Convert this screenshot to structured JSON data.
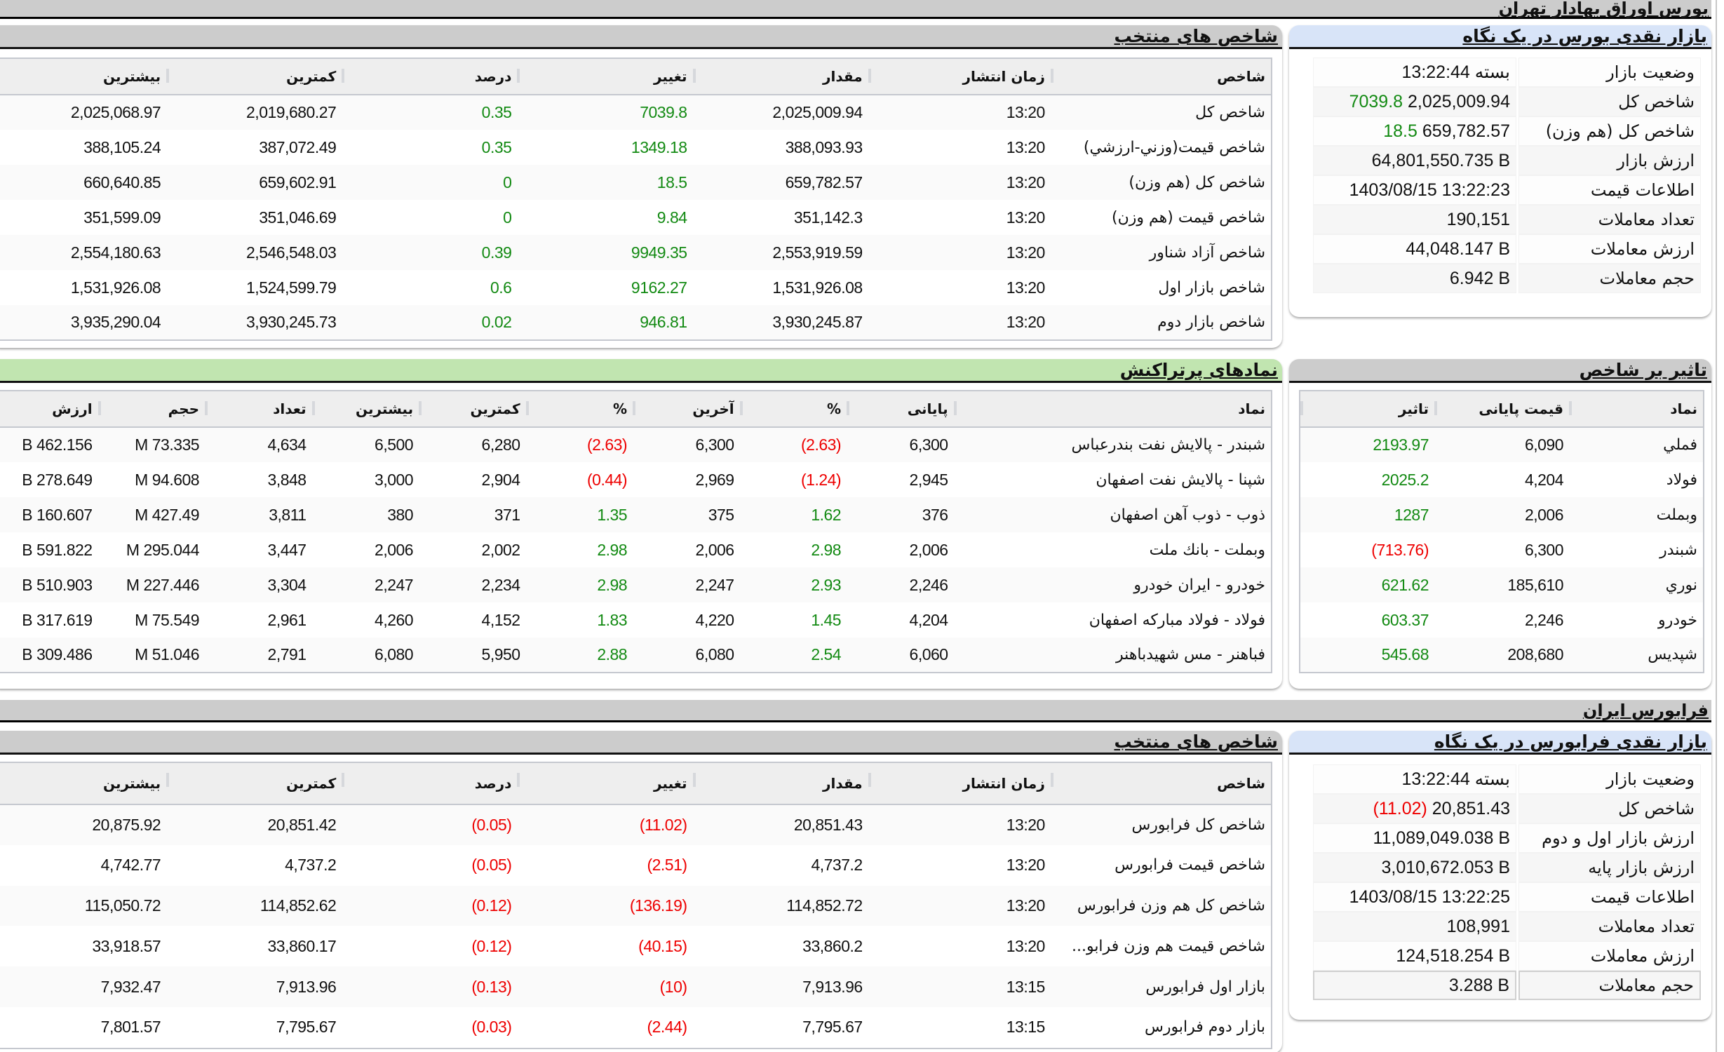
{
  "tse": {
    "title": "بورس اوراق بهادار تهران",
    "glance": {
      "title": "بازار نقدی بورس در یک نگاه",
      "rows": [
        {
          "label": "وضعیت بازار",
          "value": "بسته 13:22:44",
          "change": "",
          "change_color": ""
        },
        {
          "label": "شاخص کل",
          "value": "2,025,009.94",
          "change": "7039.8",
          "change_color": "pos"
        },
        {
          "label": "شاخص کل (هم وزن)",
          "value": "659,782.57",
          "change": "18.5",
          "change_color": "pos"
        },
        {
          "label": "ارزش بازار",
          "value": "64,801,550.735 B",
          "change": "",
          "change_color": ""
        },
        {
          "label": "اطلاعات قیمت",
          "value": "1403/08/15 13:22:23",
          "change": "",
          "change_color": ""
        },
        {
          "label": "تعداد معاملات",
          "value": "190,151",
          "change": "",
          "change_color": ""
        },
        {
          "label": "ارزش معاملات",
          "value": "44,048.147 B",
          "change": "",
          "change_color": ""
        },
        {
          "label": "حجم معاملات",
          "value": "6.942 B",
          "change": "",
          "change_color": ""
        }
      ]
    },
    "selected_indices": {
      "title": "شاخص های منتخب",
      "columns": [
        "شاخص",
        "زمان انتشار",
        "مقدار",
        "تغییر",
        "درصد",
        "کمترین",
        "بیشترین"
      ],
      "rows": [
        {
          "name": "شاخص کل",
          "time": "13:20",
          "value": "2,025,009.94",
          "change": "7039.8",
          "percent": "0.35",
          "min": "2,019,680.27",
          "max": "2,025,068.97",
          "dir": "pos"
        },
        {
          "name": "شاخص قیمت(وزني-ارزشي)",
          "time": "13:20",
          "value": "388,093.93",
          "change": "1349.18",
          "percent": "0.35",
          "min": "387,072.49",
          "max": "388,105.24",
          "dir": "pos"
        },
        {
          "name": "شاخص کل (هم وزن)",
          "time": "13:20",
          "value": "659,782.57",
          "change": "18.5",
          "percent": "0",
          "min": "659,602.91",
          "max": "660,640.85",
          "dir": "pos"
        },
        {
          "name": "شاخص قیمت (هم وزن)",
          "time": "13:20",
          "value": "351,142.3",
          "change": "9.84",
          "percent": "0",
          "min": "351,046.69",
          "max": "351,599.09",
          "dir": "pos"
        },
        {
          "name": "شاخص آزاد شناور",
          "time": "13:20",
          "value": "2,553,919.59",
          "change": "9949.35",
          "percent": "0.39",
          "min": "2,546,548.03",
          "max": "2,554,180.63",
          "dir": "pos"
        },
        {
          "name": "شاخص بازار اول",
          "time": "13:20",
          "value": "1,531,926.08",
          "change": "9162.27",
          "percent": "0.6",
          "min": "1,524,599.79",
          "max": "1,531,926.08",
          "dir": "pos"
        },
        {
          "name": "شاخص بازار دوم",
          "time": "13:20",
          "value": "3,930,245.87",
          "change": "946.81",
          "percent": "0.02",
          "min": "3,930,245.73",
          "max": "3,935,290.04",
          "dir": "pos"
        }
      ]
    },
    "impact": {
      "title": "تاثیر بر شاخص",
      "columns": [
        "نماد",
        "قیمت پایانی",
        "تاثیر"
      ],
      "rows": [
        {
          "symbol": "فملي",
          "close": "6,090",
          "impact": "2193.97",
          "dir": "pos"
        },
        {
          "symbol": "فولاد",
          "close": "4,204",
          "impact": "2025.2",
          "dir": "pos"
        },
        {
          "symbol": "وبملت",
          "close": "2,006",
          "impact": "1287",
          "dir": "pos"
        },
        {
          "symbol": "شبندر",
          "close": "6,300",
          "impact": "(713.76)",
          "dir": "neg"
        },
        {
          "symbol": "نوري",
          "close": "185,610",
          "impact": "621.62",
          "dir": "pos"
        },
        {
          "symbol": "خودرو",
          "close": "2,246",
          "impact": "603.37",
          "dir": "pos"
        },
        {
          "symbol": "شپديس",
          "close": "208,680",
          "impact": "545.68",
          "dir": "pos"
        }
      ]
    },
    "most_traded": {
      "title": "نمادهای پرتراکنش",
      "columns": [
        "نماد",
        "پایانی",
        "%",
        "آخرین",
        "%",
        "کمترین",
        "بیشترین",
        "تعداد",
        "حجم",
        "ارزش"
      ],
      "rows": [
        {
          "symbol": "شبندر - پالايش نفت بندرعباس",
          "close": "6,300",
          "close_pct": "(2.63)",
          "close_dir": "neg",
          "last": "6,300",
          "last_pct": "(2.63)",
          "last_dir": "neg",
          "min": "6,280",
          "max": "6,500",
          "count": "4,634",
          "volume": "73.335 M",
          "value": "462.156 B"
        },
        {
          "symbol": "شپنا - پالايش نفت اصفهان",
          "close": "2,945",
          "close_pct": "(1.24)",
          "close_dir": "neg",
          "last": "2,969",
          "last_pct": "(0.44)",
          "last_dir": "neg",
          "min": "2,904",
          "max": "3,000",
          "count": "3,848",
          "volume": "94.608 M",
          "value": "278.649 B"
        },
        {
          "symbol": "ذوب - ذوب آهن اصفهان",
          "close": "376",
          "close_pct": "1.62",
          "close_dir": "pos",
          "last": "375",
          "last_pct": "1.35",
          "last_dir": "pos",
          "min": "371",
          "max": "380",
          "count": "3,811",
          "volume": "427.49 M",
          "value": "160.607 B"
        },
        {
          "symbol": "وبملت - بانك ملت",
          "close": "2,006",
          "close_pct": "2.98",
          "close_dir": "pos",
          "last": "2,006",
          "last_pct": "2.98",
          "last_dir": "pos",
          "min": "2,002",
          "max": "2,006",
          "count": "3,447",
          "volume": "295.044 M",
          "value": "591.822 B"
        },
        {
          "symbol": "خودرو - ايران خودرو",
          "close": "2,246",
          "close_pct": "2.93",
          "close_dir": "pos",
          "last": "2,247",
          "last_pct": "2.98",
          "last_dir": "pos",
          "min": "2,234",
          "max": "2,247",
          "count": "3,304",
          "volume": "227.446 M",
          "value": "510.903 B"
        },
        {
          "symbol": "فولاد - فولاد مباركه اصفهان",
          "close": "4,204",
          "close_pct": "1.45",
          "close_dir": "pos",
          "last": "4,220",
          "last_pct": "1.83",
          "last_dir": "pos",
          "min": "4,152",
          "max": "4,260",
          "count": "2,961",
          "volume": "75.549 M",
          "value": "317.619 B"
        },
        {
          "symbol": "فباهنر - مس شهيدباهنر",
          "close": "6,060",
          "close_pct": "2.54",
          "close_dir": "pos",
          "last": "6,080",
          "last_pct": "2.88",
          "last_dir": "pos",
          "min": "5,950",
          "max": "6,080",
          "count": "2,791",
          "volume": "51.046 M",
          "value": "309.486 B"
        }
      ]
    }
  },
  "ifb": {
    "title": "فرابورس ایران",
    "glance": {
      "title": "بازار نقدی فرابورس در یک نگاه",
      "rows": [
        {
          "label": "وضعیت بازار",
          "value": "بسته 13:22:44",
          "change": "",
          "change_color": ""
        },
        {
          "label": "شاخص کل",
          "value": "20,851.43",
          "change": "(11.02)",
          "change_color": "neg"
        },
        {
          "label": "ارزش بازار اول و دوم",
          "value": "11,089,049.038 B",
          "change": "",
          "change_color": ""
        },
        {
          "label": "ارزش بازار پایه",
          "value": "3,010,672.053 B",
          "change": "",
          "change_color": ""
        },
        {
          "label": "اطلاعات قیمت",
          "value": "1403/08/15 13:22:25",
          "change": "",
          "change_color": ""
        },
        {
          "label": "تعداد معاملات",
          "value": "108,991",
          "change": "",
          "change_color": ""
        },
        {
          "label": "ارزش معاملات",
          "value": "124,518.254 B",
          "change": "",
          "change_color": ""
        },
        {
          "label": "حجم معاملات",
          "value": "3.288 B",
          "change": "",
          "change_color": ""
        }
      ]
    },
    "selected_indices": {
      "title": "شاخص های منتخب",
      "columns": [
        "شاخص",
        "زمان انتشار",
        "مقدار",
        "تغییر",
        "درصد",
        "کمترین",
        "بیشترین"
      ],
      "rows": [
        {
          "name": "شاخص کل فرابورس",
          "time": "13:20",
          "value": "20,851.43",
          "change": "(11.02)",
          "percent": "(0.05)",
          "min": "20,851.42",
          "max": "20,875.92",
          "dir": "neg"
        },
        {
          "name": "شاخص قیمت فرابورس",
          "time": "13:20",
          "value": "4,737.2",
          "change": "(2.51)",
          "percent": "(0.05)",
          "min": "4,737.2",
          "max": "4,742.77",
          "dir": "neg"
        },
        {
          "name": "شاخص کل هم وزن فرابورس",
          "time": "13:20",
          "value": "114,852.72",
          "change": "(136.19)",
          "percent": "(0.12)",
          "min": "114,852.62",
          "max": "115,050.72",
          "dir": "neg"
        },
        {
          "name": "شاخص قیمت هم وزن فرابو...",
          "time": "13:20",
          "value": "33,860.2",
          "change": "(40.15)",
          "percent": "(0.12)",
          "min": "33,860.17",
          "max": "33,918.57",
          "dir": "neg"
        },
        {
          "name": "بازار اول فرابورس",
          "time": "13:15",
          "value": "7,913.96",
          "change": "(10)",
          "percent": "(0.13)",
          "min": "7,913.96",
          "max": "7,932.47",
          "dir": "neg"
        },
        {
          "name": "بازار دوم فرابورس",
          "time": "13:15",
          "value": "7,795.67",
          "change": "(2.44)",
          "percent": "(0.03)",
          "min": "7,795.67",
          "max": "7,801.57",
          "dir": "neg"
        }
      ]
    }
  },
  "colors": {
    "positive": "#138a13",
    "negative": "#ee0000",
    "header_gray": "#cccccc",
    "header_blue": "#d8e4f8",
    "header_green": "#c1e5b0"
  }
}
